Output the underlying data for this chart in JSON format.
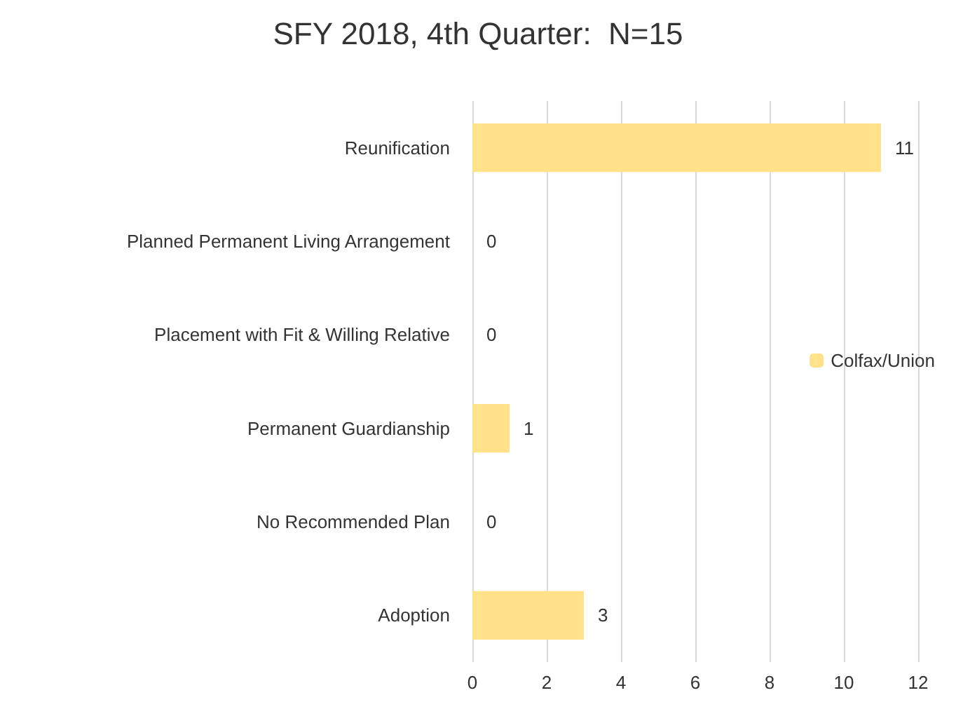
{
  "chart_data": {
    "type": "bar",
    "title": "SFY 2018, 4th Quarter:  N=15",
    "orientation": "horizontal",
    "categories": [
      "Reunification",
      "Planned Permanent Living Arrangement",
      "Placement with Fit & Willing Relative",
      "Permanent Guardianship",
      "No Recommended Plan",
      "Adoption"
    ],
    "series": [
      {
        "name": "Colfax/Union",
        "color": "#ffe28a",
        "values": [
          11,
          0,
          0,
          1,
          0,
          3
        ]
      }
    ],
    "xlim": [
      0,
      12
    ],
    "xticks": [
      0,
      2,
      4,
      6,
      8,
      10,
      12
    ],
    "grid": "x",
    "legend": "right",
    "data_labels": true
  }
}
